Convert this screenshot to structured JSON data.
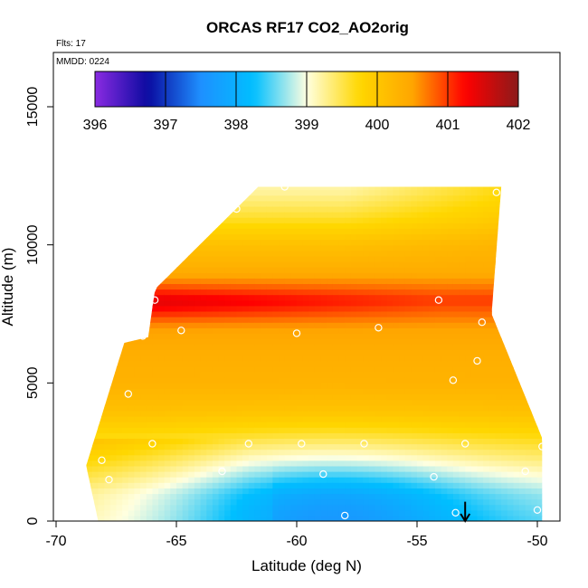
{
  "chart_data": {
    "type": "heatmap",
    "title": "ORCAS RF17 CO2_AO2orig",
    "subtitle_flights": "Flts: 17",
    "subtitle_date": "MMDD: 0224",
    "xlabel": "Latitude (deg N)",
    "ylabel": "Altitude (m)",
    "xlim": [
      -70,
      -49
    ],
    "ylim": [
      0,
      16700
    ],
    "x_ticks": [
      -70,
      -65,
      -60,
      -55,
      -50
    ],
    "x_tick_labels": [
      "-70",
      "-65",
      "-60",
      "-55",
      "-50"
    ],
    "y_ticks": [
      0,
      5000,
      10000,
      15000
    ],
    "y_tick_labels": [
      "0",
      "5000",
      "10000",
      "15000"
    ],
    "colorbar": {
      "range": [
        396,
        402
      ],
      "ticks": [
        396,
        397,
        398,
        399,
        400,
        401,
        402
      ],
      "tick_labels": [
        "396",
        "397",
        "398",
        "399",
        "400",
        "401",
        "402"
      ],
      "colors": [
        "#8a2be2",
        "#0a0aa0",
        "#1e90ff",
        "#00bfff",
        "#ffffe0",
        "#ffd700",
        "#ffa500",
        "#ff0000",
        "#8b1a1a"
      ]
    },
    "curtain": {
      "lat_range": [
        -68.5,
        -49.8
      ],
      "alt_max": 12100,
      "vertical_profile": [
        {
          "alt": 0,
          "co2": 398.8
        },
        {
          "alt": 1000,
          "co2": 398.9
        },
        {
          "alt": 2000,
          "co2": 399.3
        },
        {
          "alt": 3000,
          "co2": 399.7
        },
        {
          "alt": 4000,
          "co2": 400.1
        },
        {
          "alt": 5000,
          "co2": 400.3
        },
        {
          "alt": 6000,
          "co2": 400.35
        },
        {
          "alt": 7000,
          "co2": 400.5
        },
        {
          "alt": 8000,
          "co2": 401.0
        },
        {
          "alt": 9000,
          "co2": 400.4
        },
        {
          "alt": 10000,
          "co2": 400.1
        },
        {
          "alt": 11000,
          "co2": 399.6
        },
        {
          "alt": 12000,
          "co2": 399.2
        }
      ],
      "low_co2_center": {
        "lat": -58.5,
        "alt": 300,
        "co2": 398.0
      }
    },
    "sample_points": [
      {
        "lat": -68.1,
        "alt": 2200
      },
      {
        "lat": -67.8,
        "alt": 1500
      },
      {
        "lat": -67.0,
        "alt": 4600
      },
      {
        "lat": -66.4,
        "alt": 6700
      },
      {
        "lat": -65.9,
        "alt": 8000
      },
      {
        "lat": -66.0,
        "alt": 2800
      },
      {
        "lat": -64.8,
        "alt": 6900
      },
      {
        "lat": -63.1,
        "alt": 1800
      },
      {
        "lat": -62.5,
        "alt": 11300
      },
      {
        "lat": -62.0,
        "alt": 2800
      },
      {
        "lat": -60.0,
        "alt": 6800
      },
      {
        "lat": -60.5,
        "alt": 12100
      },
      {
        "lat": -59.8,
        "alt": 2800
      },
      {
        "lat": -58.9,
        "alt": 1700
      },
      {
        "lat": -58.0,
        "alt": 200
      },
      {
        "lat": -57.2,
        "alt": 2800
      },
      {
        "lat": -56.6,
        "alt": 7000
      },
      {
        "lat": -54.3,
        "alt": 1600
      },
      {
        "lat": -54.1,
        "alt": 8000
      },
      {
        "lat": -53.5,
        "alt": 5100
      },
      {
        "lat": -53.4,
        "alt": 300
      },
      {
        "lat": -53.0,
        "alt": 2800
      },
      {
        "lat": -52.5,
        "alt": 5800
      },
      {
        "lat": -52.3,
        "alt": 7200
      },
      {
        "lat": -51.7,
        "alt": 11900
      },
      {
        "lat": -50.5,
        "alt": 1800
      },
      {
        "lat": -50.0,
        "alt": 400
      },
      {
        "lat": -49.8,
        "alt": 2700
      }
    ],
    "marker_arrow": {
      "lat": -53.0,
      "alt_from": 700,
      "alt_to": 0
    }
  }
}
